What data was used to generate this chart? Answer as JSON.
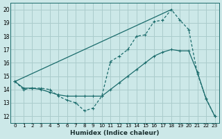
{
  "xlabel": "Humidex (Indice chaleur)",
  "xlim": [
    -0.5,
    23.5
  ],
  "ylim": [
    11.5,
    20.5
  ],
  "yticks": [
    12,
    13,
    14,
    15,
    16,
    17,
    18,
    19,
    20
  ],
  "xticks": [
    0,
    1,
    2,
    3,
    4,
    5,
    6,
    7,
    8,
    9,
    10,
    11,
    12,
    13,
    14,
    15,
    16,
    17,
    18,
    19,
    20,
    21,
    22,
    23
  ],
  "bg_color": "#cce8e8",
  "grid_color": "#aacccc",
  "line_color": "#1a6b6b",
  "line1_x": [
    0,
    1,
    2,
    3,
    4,
    5,
    6,
    7,
    8,
    9,
    10,
    11,
    12,
    13,
    14,
    15,
    16,
    17,
    18,
    19,
    20,
    21,
    22,
    23
  ],
  "line1_y": [
    14.6,
    14.0,
    14.1,
    14.1,
    14.0,
    13.5,
    13.2,
    13.0,
    12.4,
    12.6,
    13.5,
    16.1,
    16.5,
    17.0,
    18.0,
    18.1,
    19.1,
    19.2,
    20.0,
    19.2,
    18.5,
    15.2,
    13.3,
    12.0
  ],
  "line2_x": [
    0,
    1,
    2,
    3,
    4,
    5,
    6,
    7,
    8,
    9,
    10,
    11,
    12,
    13,
    14,
    15,
    16,
    17,
    18,
    19,
    20,
    21,
    22,
    23
  ],
  "line2_y": [
    14.6,
    14.1,
    14.1,
    14.0,
    13.8,
    13.6,
    13.5,
    13.5,
    13.5,
    13.5,
    13.5,
    14.0,
    14.5,
    15.0,
    15.5,
    16.0,
    16.5,
    16.8,
    17.0,
    16.9,
    16.9,
    15.3,
    13.3,
    12.0
  ],
  "line3_x": [
    0,
    18
  ],
  "line3_y": [
    14.6,
    20.0
  ]
}
